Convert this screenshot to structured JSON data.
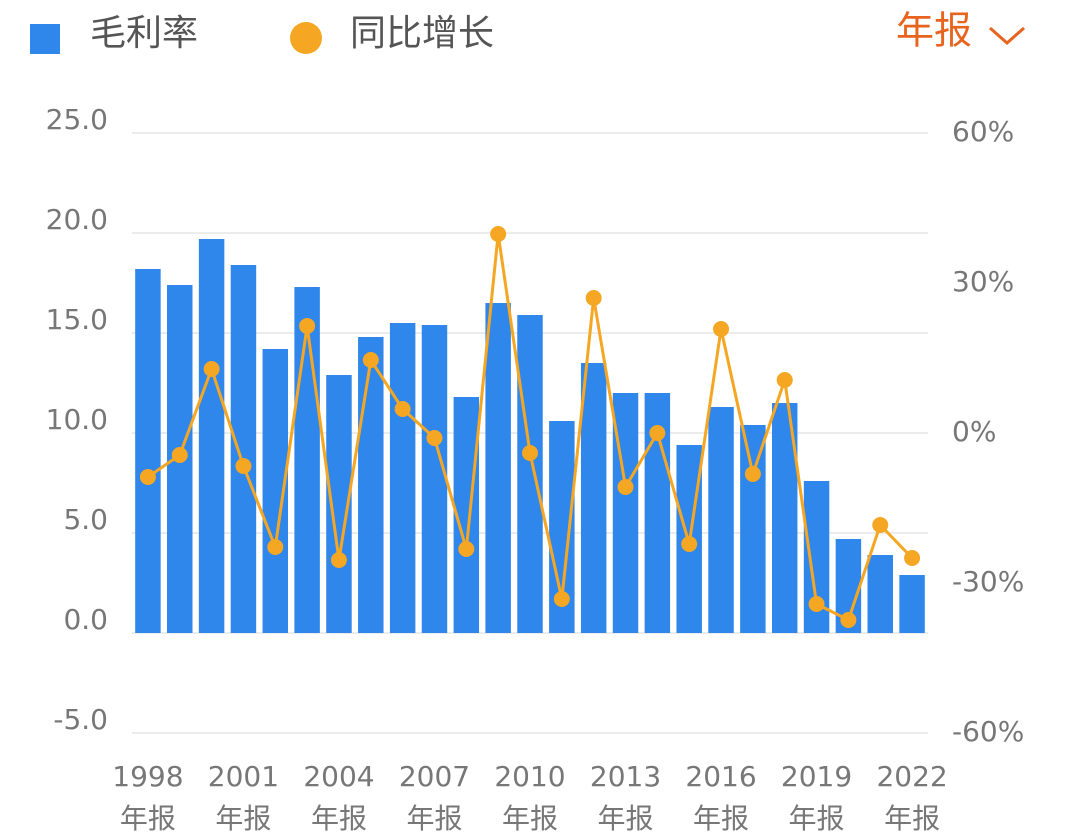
{
  "chart_data": {
    "type": "bar-line",
    "period_selector": "年报",
    "categories": [
      "1998",
      null,
      null,
      "2001",
      null,
      null,
      "2004",
      null,
      null,
      "2007",
      null,
      null,
      "2010",
      null,
      null,
      "2013",
      null,
      null,
      "2016",
      null,
      null,
      "2019",
      null,
      null,
      "2022"
    ],
    "category_suffix": "年报",
    "series": [
      {
        "name": "毛利率",
        "type": "bar",
        "color": "#2f86eb",
        "values": [
          18.2,
          17.4,
          19.7,
          18.4,
          14.2,
          17.3,
          12.9,
          14.8,
          15.5,
          15.4,
          11.8,
          16.5,
          15.9,
          10.6,
          13.5,
          12.0,
          12.0,
          9.4,
          11.3,
          10.4,
          11.5,
          7.6,
          4.7,
          3.9,
          2.9
        ]
      },
      {
        "name": "同比增长",
        "type": "line",
        "axis": "y2",
        "color": "#f5a623",
        "values": [
          -8.8,
          -4.4,
          12.8,
          -6.6,
          -22.8,
          21.4,
          -25.4,
          14.6,
          4.8,
          -1.0,
          -23.2,
          39.8,
          -4.0,
          -33.2,
          27.0,
          -10.8,
          0.0,
          -22.2,
          20.8,
          -8.2,
          10.6,
          -34.2,
          -37.4,
          -18.4,
          -25.0
        ]
      }
    ],
    "ylim": [
      -5,
      25
    ],
    "yticks": [
      {
        "value": 25,
        "label": "25.0"
      },
      {
        "value": 20,
        "label": "20.0"
      },
      {
        "value": 15,
        "label": "15.0"
      },
      {
        "value": 10,
        "label": "10.0"
      },
      {
        "value": 5,
        "label": "5.0"
      },
      {
        "value": 0,
        "label": "0.0"
      },
      {
        "value": -5,
        "label": "-5.0"
      }
    ],
    "y2lim": [
      -60,
      60
    ],
    "y2ticks": [
      {
        "value": 60,
        "label": "60%"
      },
      {
        "value": 30,
        "label": "30%"
      },
      {
        "value": 0,
        "label": "0%"
      },
      {
        "value": -30,
        "label": "-30%"
      },
      {
        "value": -60,
        "label": "-60%"
      }
    ],
    "grid": true
  }
}
